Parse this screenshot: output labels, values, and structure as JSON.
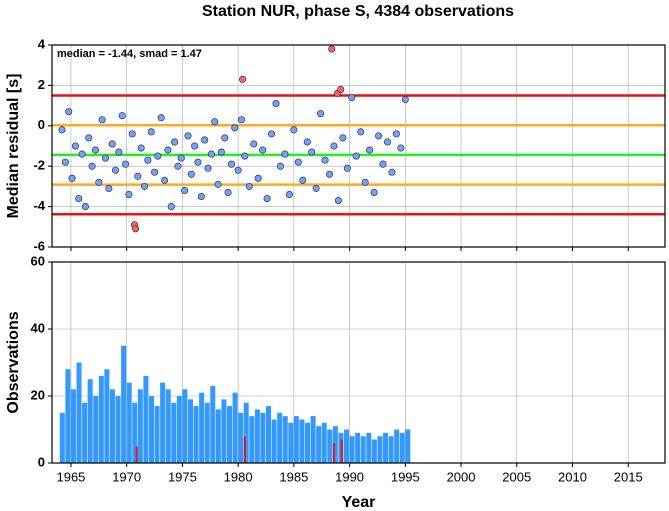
{
  "chart_data": [
    {
      "type": "scatter",
      "title": "Station NUR, phase S, 4384 observations",
      "ylabel": "Median residual [s]",
      "annotation": "median = -1.44, smad = 1.47",
      "xlim": [
        1963.3,
        2018.3
      ],
      "ylim": [
        -6,
        4
      ],
      "yticks": [
        -6,
        -4,
        -2,
        0,
        2,
        4
      ],
      "grid": true,
      "hlines": [
        {
          "value": 1.5,
          "color": "#ee1111"
        },
        {
          "value": 0.03,
          "color": "#ffaa22"
        },
        {
          "value": -1.44,
          "color": "#22ee22"
        },
        {
          "value": -2.91,
          "color": "#ffaa22"
        },
        {
          "value": -4.38,
          "color": "#ee1111"
        }
      ],
      "series": [
        {
          "color": "#6fa3ff",
          "x": [
            1964.2,
            1964.5,
            1964.8,
            1965.1,
            1965.4,
            1965.7,
            1966.0,
            1966.3,
            1966.6,
            1966.9,
            1967.2,
            1967.5,
            1967.8,
            1968.1,
            1968.4,
            1968.7,
            1969.0,
            1969.3,
            1969.6,
            1969.9,
            1970.2,
            1970.5,
            1971.0,
            1971.3,
            1971.6,
            1971.9,
            1972.2,
            1972.5,
            1972.8,
            1973.1,
            1973.4,
            1973.7,
            1974.0,
            1974.3,
            1974.6,
            1974.9,
            1975.2,
            1975.5,
            1975.8,
            1976.1,
            1976.4,
            1976.7,
            1977.0,
            1977.3,
            1977.6,
            1977.9,
            1978.2,
            1978.5,
            1978.8,
            1979.1,
            1979.4,
            1979.7,
            1980.0,
            1980.3,
            1980.6,
            1981.0,
            1981.4,
            1981.8,
            1982.2,
            1982.6,
            1983.0,
            1983.4,
            1983.8,
            1984.2,
            1984.6,
            1985.0,
            1985.4,
            1985.8,
            1986.2,
            1986.6,
            1987.0,
            1987.4,
            1987.8,
            1988.2,
            1988.6,
            1989.0,
            1989.4,
            1989.8,
            1990.2,
            1990.6,
            1991.0,
            1991.4,
            1991.8,
            1992.2,
            1992.6,
            1993.0,
            1993.4,
            1993.8,
            1994.2,
            1994.6,
            1995.0
          ],
          "values": [
            -0.2,
            -1.8,
            0.7,
            -2.6,
            -1.0,
            -3.6,
            -1.4,
            -4.0,
            -0.6,
            -2.0,
            -1.2,
            -2.8,
            0.3,
            -1.6,
            -3.1,
            -0.9,
            -2.2,
            -1.3,
            0.5,
            -1.9,
            -3.4,
            -0.4,
            -2.5,
            -1.1,
            -3.0,
            -1.7,
            -0.3,
            -2.3,
            -1.5,
            0.4,
            -2.7,
            -1.2,
            -4.0,
            -0.8,
            -2.0,
            -1.6,
            -3.2,
            -0.5,
            -2.4,
            -1.0,
            -1.8,
            -3.5,
            -0.7,
            -2.1,
            -1.4,
            0.2,
            -2.9,
            -1.3,
            -0.6,
            -3.3,
            -1.9,
            -0.1,
            -2.2,
            0.3,
            -1.5,
            -3.0,
            -0.9,
            -2.6,
            -1.2,
            -3.6,
            -0.4,
            1.1,
            -2.0,
            -1.4,
            -3.4,
            -0.2,
            -1.8,
            -2.7,
            -0.8,
            -1.3,
            -3.1,
            0.6,
            -1.7,
            -2.4,
            -1.0,
            -3.7,
            -0.6,
            -2.1,
            1.4,
            -1.5,
            -0.3,
            -2.8,
            -1.2,
            -3.3,
            -0.5,
            -1.9,
            -0.8,
            -2.3,
            -0.4,
            -1.1,
            1.3
          ]
        },
        {
          "color": "#ff6060",
          "x": [
            1970.7,
            1970.8,
            1980.4,
            1988.4,
            1988.9,
            1989.2
          ],
          "values": [
            -4.9,
            -5.1,
            2.3,
            3.8,
            1.6,
            1.8
          ]
        }
      ]
    },
    {
      "type": "bar",
      "xlabel": "Year",
      "ylabel": "Observations",
      "xlim": [
        1963.3,
        2018.3
      ],
      "xticks": [
        1965,
        1970,
        1975,
        1980,
        1985,
        1990,
        1995,
        2000,
        2005,
        2010,
        2015
      ],
      "ylim": [
        0,
        60
      ],
      "yticks": [
        0,
        20,
        40,
        60
      ],
      "grid": true,
      "series": [
        {
          "color": "#3399ff",
          "x": [
            1964.0,
            1964.5,
            1965.0,
            1965.5,
            1966.0,
            1966.5,
            1967.0,
            1967.5,
            1968.0,
            1968.5,
            1969.0,
            1969.5,
            1970.0,
            1970.5,
            1971.0,
            1971.5,
            1972.0,
            1972.5,
            1973.0,
            1973.5,
            1974.0,
            1974.5,
            1975.0,
            1975.5,
            1976.0,
            1976.5,
            1977.0,
            1977.5,
            1978.0,
            1978.5,
            1979.0,
            1979.5,
            1980.0,
            1980.5,
            1981.0,
            1981.5,
            1982.0,
            1982.5,
            1983.0,
            1983.5,
            1984.0,
            1984.5,
            1985.0,
            1985.5,
            1986.0,
            1986.5,
            1987.0,
            1987.5,
            1988.0,
            1988.5,
            1989.0,
            1989.5,
            1990.0,
            1990.5,
            1991.0,
            1991.5,
            1992.0,
            1992.5,
            1993.0,
            1993.5,
            1994.0,
            1994.5,
            1995.0
          ],
          "values": [
            15,
            28,
            22,
            30,
            18,
            25,
            20,
            26,
            28,
            22,
            20,
            35,
            24,
            18,
            22,
            26,
            20,
            17,
            24,
            22,
            18,
            20,
            22,
            19,
            17,
            21,
            18,
            23,
            16,
            19,
            17,
            21,
            15,
            18,
            14,
            16,
            15,
            17,
            13,
            15,
            14,
            12,
            14,
            13,
            12,
            14,
            11,
            12,
            10,
            11,
            9,
            10,
            8,
            9,
            8,
            9,
            7,
            8,
            9,
            8,
            10,
            9,
            10
          ]
        },
        {
          "color": "#cc2233",
          "x": [
            1970.8,
            1980.5,
            1988.5,
            1989.2
          ],
          "values": [
            5,
            8,
            6,
            7
          ]
        }
      ]
    }
  ]
}
